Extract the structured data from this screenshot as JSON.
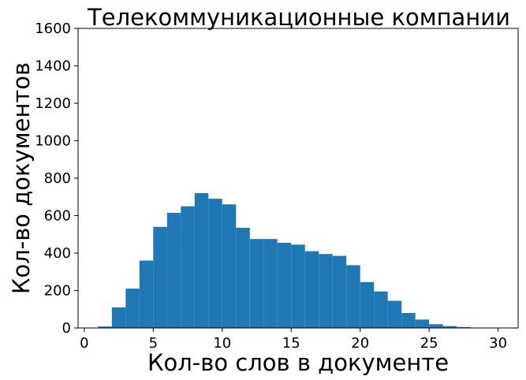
{
  "chart_data": {
    "type": "bar",
    "subtype": "histogram",
    "title": "Телекоммуникационные компании",
    "xlabel": "Кол-во слов в документе",
    "ylabel": "Кол-во документов",
    "xlim": [
      -0.45,
      31.45
    ],
    "ylim": [
      0,
      1600
    ],
    "xticks": [
      0,
      5,
      10,
      15,
      20,
      25,
      30
    ],
    "yticks": [
      0,
      200,
      400,
      600,
      800,
      1000,
      1200,
      1400,
      1600
    ],
    "grid": false,
    "bar_color": "#1f77b4",
    "bins": [
      {
        "x0": 1,
        "x1": 2,
        "value": 8
      },
      {
        "x0": 2,
        "x1": 3,
        "value": 110
      },
      {
        "x0": 3,
        "x1": 4,
        "value": 210
      },
      {
        "x0": 4,
        "x1": 5,
        "value": 360
      },
      {
        "x0": 5,
        "x1": 6,
        "value": 540
      },
      {
        "x0": 6,
        "x1": 7,
        "value": 615
      },
      {
        "x0": 7,
        "x1": 8,
        "value": 650
      },
      {
        "x0": 8,
        "x1": 9,
        "value": 720
      },
      {
        "x0": 9,
        "x1": 10,
        "value": 690
      },
      {
        "x0": 10,
        "x1": 11,
        "value": 660
      },
      {
        "x0": 11,
        "x1": 12,
        "value": 535
      },
      {
        "x0": 12,
        "x1": 13,
        "value": 475
      },
      {
        "x0": 13,
        "x1": 14,
        "value": 475
      },
      {
        "x0": 14,
        "x1": 15,
        "value": 455
      },
      {
        "x0": 15,
        "x1": 16,
        "value": 445
      },
      {
        "x0": 16,
        "x1": 17,
        "value": 410
      },
      {
        "x0": 17,
        "x1": 18,
        "value": 395
      },
      {
        "x0": 18,
        "x1": 19,
        "value": 385
      },
      {
        "x0": 19,
        "x1": 20,
        "value": 335
      },
      {
        "x0": 20,
        "x1": 21,
        "value": 245
      },
      {
        "x0": 21,
        "x1": 22,
        "value": 195
      },
      {
        "x0": 22,
        "x1": 23,
        "value": 145
      },
      {
        "x0": 23,
        "x1": 24,
        "value": 80
      },
      {
        "x0": 24,
        "x1": 25,
        "value": 45
      },
      {
        "x0": 25,
        "x1": 26,
        "value": 20
      },
      {
        "x0": 26,
        "x1": 27,
        "value": 10
      },
      {
        "x0": 27,
        "x1": 28,
        "value": 5
      },
      {
        "x0": 28,
        "x1": 29,
        "value": 2
      },
      {
        "x0": 29,
        "x1": 30,
        "value": 1
      }
    ]
  }
}
